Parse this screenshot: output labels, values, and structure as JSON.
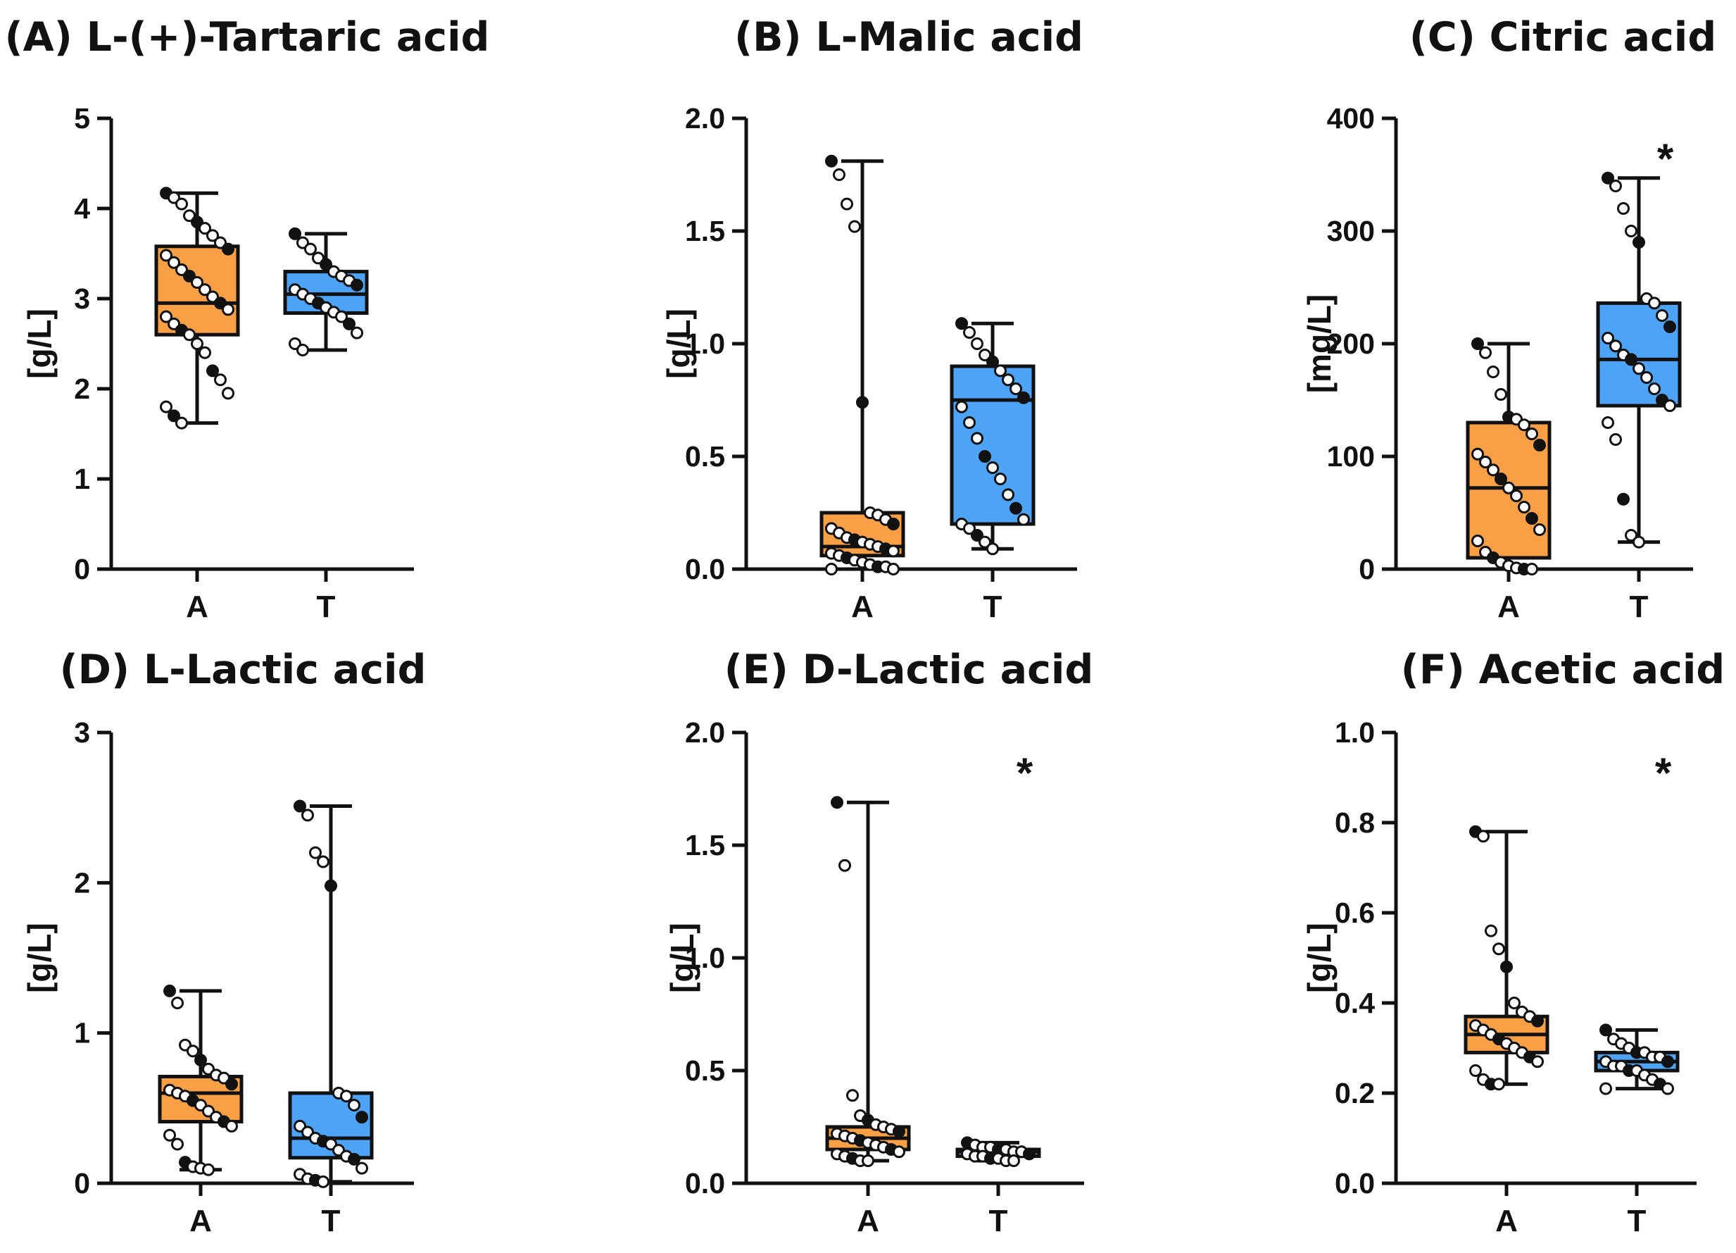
{
  "colors": {
    "A": "#f9a046",
    "T": "#4da3f5",
    "ink": "#111111"
  },
  "chart_data": [
    {
      "type": "box",
      "panel": "A",
      "title": "(A) L-(+)-Tartaric acid",
      "ylabel": "[g/L]",
      "ylim": [
        0,
        5
      ],
      "yticks": [
        "0",
        "1",
        "2",
        "3",
        "4",
        "5"
      ],
      "categories": [
        "A",
        "T"
      ],
      "significance": "",
      "boxes": [
        {
          "name": "A",
          "min": 1.62,
          "q1": 2.6,
          "median": 2.95,
          "q3": 3.58,
          "max": 4.17,
          "points": [
            4.17,
            4.12,
            4.05,
            3.92,
            3.85,
            3.78,
            3.7,
            3.62,
            3.55,
            3.48,
            3.4,
            3.32,
            3.25,
            3.18,
            3.1,
            3.02,
            2.95,
            2.88,
            2.8,
            2.72,
            2.65,
            2.6,
            2.5,
            2.4,
            2.2,
            2.1,
            1.95,
            1.8,
            1.7,
            1.62
          ]
        },
        {
          "name": "T",
          "min": 2.43,
          "q1": 2.84,
          "median": 3.05,
          "q3": 3.3,
          "max": 3.72,
          "points": [
            3.72,
            3.62,
            3.55,
            3.45,
            3.38,
            3.3,
            3.25,
            3.2,
            3.15,
            3.1,
            3.05,
            3.0,
            2.95,
            2.9,
            2.85,
            2.8,
            2.72,
            2.62,
            2.5,
            2.43
          ]
        }
      ]
    },
    {
      "type": "box",
      "panel": "B",
      "title": "(B) L-Malic acid",
      "ylabel": "[g/L]",
      "ylim": [
        0,
        2
      ],
      "yticks": [
        "0.0",
        "0.5",
        "1.0",
        "1.5",
        "2.0"
      ],
      "categories": [
        "A",
        "T"
      ],
      "significance": "",
      "boxes": [
        {
          "name": "A",
          "min": 0.0,
          "q1": 0.06,
          "median": 0.1,
          "q3": 0.25,
          "max": 1.81,
          "points": [
            1.81,
            1.75,
            1.62,
            1.52,
            0.74,
            0.25,
            0.24,
            0.22,
            0.2,
            0.18,
            0.16,
            0.14,
            0.13,
            0.12,
            0.11,
            0.1,
            0.09,
            0.08,
            0.07,
            0.06,
            0.05,
            0.04,
            0.03,
            0.02,
            0.01,
            0.01,
            0.0,
            0.0
          ]
        },
        {
          "name": "T",
          "min": 0.09,
          "q1": 0.2,
          "median": 0.75,
          "q3": 0.9,
          "max": 1.09,
          "points": [
            1.09,
            1.05,
            1.0,
            0.95,
            0.92,
            0.88,
            0.84,
            0.8,
            0.76,
            0.72,
            0.65,
            0.58,
            0.5,
            0.45,
            0.4,
            0.33,
            0.27,
            0.22,
            0.2,
            0.18,
            0.15,
            0.12,
            0.09
          ]
        }
      ]
    },
    {
      "type": "box",
      "panel": "C",
      "title": "(C) Citric acid",
      "ylabel": "[mg/L]",
      "ylim": [
        0,
        400
      ],
      "yticks": [
        "0",
        "100",
        "200",
        "300",
        "400"
      ],
      "categories": [
        "A",
        "T"
      ],
      "significance": "*",
      "boxes": [
        {
          "name": "A",
          "min": 0,
          "q1": 10,
          "median": 72,
          "q3": 130,
          "max": 200,
          "points": [
            200,
            192,
            175,
            155,
            135,
            133,
            128,
            120,
            110,
            102,
            95,
            88,
            80,
            72,
            65,
            55,
            45,
            35,
            25,
            15,
            10,
            6,
            3,
            1,
            0,
            0
          ]
        },
        {
          "name": "T",
          "min": 24,
          "q1": 145,
          "median": 186,
          "q3": 236,
          "max": 347,
          "points": [
            347,
            340,
            320,
            300,
            290,
            240,
            236,
            225,
            215,
            205,
            198,
            190,
            186,
            178,
            170,
            160,
            150,
            145,
            130,
            115,
            62,
            30,
            24
          ]
        }
      ]
    },
    {
      "type": "box",
      "panel": "D",
      "title": "(D) L-Lactic acid",
      "ylabel": "[g/L]",
      "ylim": [
        0,
        3
      ],
      "yticks": [
        "0",
        "1",
        "2",
        "3"
      ],
      "categories": [
        "A",
        "T"
      ],
      "significance": "",
      "boxes": [
        {
          "name": "A",
          "min": 0.09,
          "q1": 0.41,
          "median": 0.6,
          "q3": 0.71,
          "max": 1.28,
          "points": [
            1.28,
            1.2,
            0.92,
            0.88,
            0.82,
            0.76,
            0.72,
            0.7,
            0.66,
            0.62,
            0.6,
            0.58,
            0.55,
            0.52,
            0.48,
            0.44,
            0.41,
            0.38,
            0.32,
            0.26,
            0.14,
            0.11,
            0.1,
            0.09
          ]
        },
        {
          "name": "T",
          "min": 0.01,
          "q1": 0.17,
          "median": 0.3,
          "q3": 0.6,
          "max": 2.51,
          "points": [
            2.51,
            2.45,
            2.2,
            2.14,
            1.98,
            0.6,
            0.58,
            0.52,
            0.44,
            0.38,
            0.34,
            0.3,
            0.28,
            0.26,
            0.22,
            0.18,
            0.16,
            0.1,
            0.06,
            0.03,
            0.02,
            0.01
          ]
        }
      ]
    },
    {
      "type": "box",
      "panel": "E",
      "title": "(E) D-Lactic acid",
      "ylabel": "[g/L]",
      "ylim": [
        0,
        2
      ],
      "yticks": [
        "0.0",
        "0.5",
        "1.0",
        "1.5",
        "2.0"
      ],
      "categories": [
        "A",
        "T"
      ],
      "significance": "*",
      "boxes": [
        {
          "name": "A",
          "min": 0.1,
          "q1": 0.15,
          "median": 0.2,
          "q3": 0.25,
          "max": 1.69,
          "points": [
            1.69,
            1.41,
            0.39,
            0.3,
            0.28,
            0.26,
            0.25,
            0.24,
            0.23,
            0.22,
            0.21,
            0.2,
            0.19,
            0.18,
            0.17,
            0.16,
            0.15,
            0.14,
            0.13,
            0.12,
            0.11,
            0.1,
            0.1
          ]
        },
        {
          "name": "T",
          "min": 0.1,
          "q1": 0.12,
          "median": 0.14,
          "q3": 0.15,
          "max": 0.18,
          "points": [
            0.18,
            0.17,
            0.16,
            0.16,
            0.15,
            0.15,
            0.14,
            0.14,
            0.13,
            0.13,
            0.12,
            0.12,
            0.11,
            0.11,
            0.1,
            0.1
          ]
        }
      ]
    },
    {
      "type": "box",
      "panel": "F",
      "title": "(F) Acetic acid",
      "ylabel": "[g/L]",
      "ylim": [
        0,
        1
      ],
      "yticks": [
        "0.0",
        "0.2",
        "0.4",
        "0.6",
        "0.8",
        "1.0"
      ],
      "categories": [
        "A",
        "T"
      ],
      "significance": "*",
      "boxes": [
        {
          "name": "A",
          "min": 0.22,
          "q1": 0.29,
          "median": 0.33,
          "q3": 0.37,
          "max": 0.78,
          "points": [
            0.78,
            0.77,
            0.56,
            0.52,
            0.48,
            0.4,
            0.38,
            0.37,
            0.36,
            0.35,
            0.34,
            0.33,
            0.32,
            0.31,
            0.3,
            0.29,
            0.28,
            0.27,
            0.25,
            0.23,
            0.22,
            0.22
          ]
        },
        {
          "name": "T",
          "min": 0.21,
          "q1": 0.25,
          "median": 0.27,
          "q3": 0.29,
          "max": 0.34,
          "points": [
            0.34,
            0.32,
            0.31,
            0.3,
            0.29,
            0.29,
            0.28,
            0.28,
            0.27,
            0.27,
            0.26,
            0.26,
            0.25,
            0.25,
            0.24,
            0.23,
            0.22,
            0.21,
            0.21
          ]
        }
      ]
    }
  ]
}
